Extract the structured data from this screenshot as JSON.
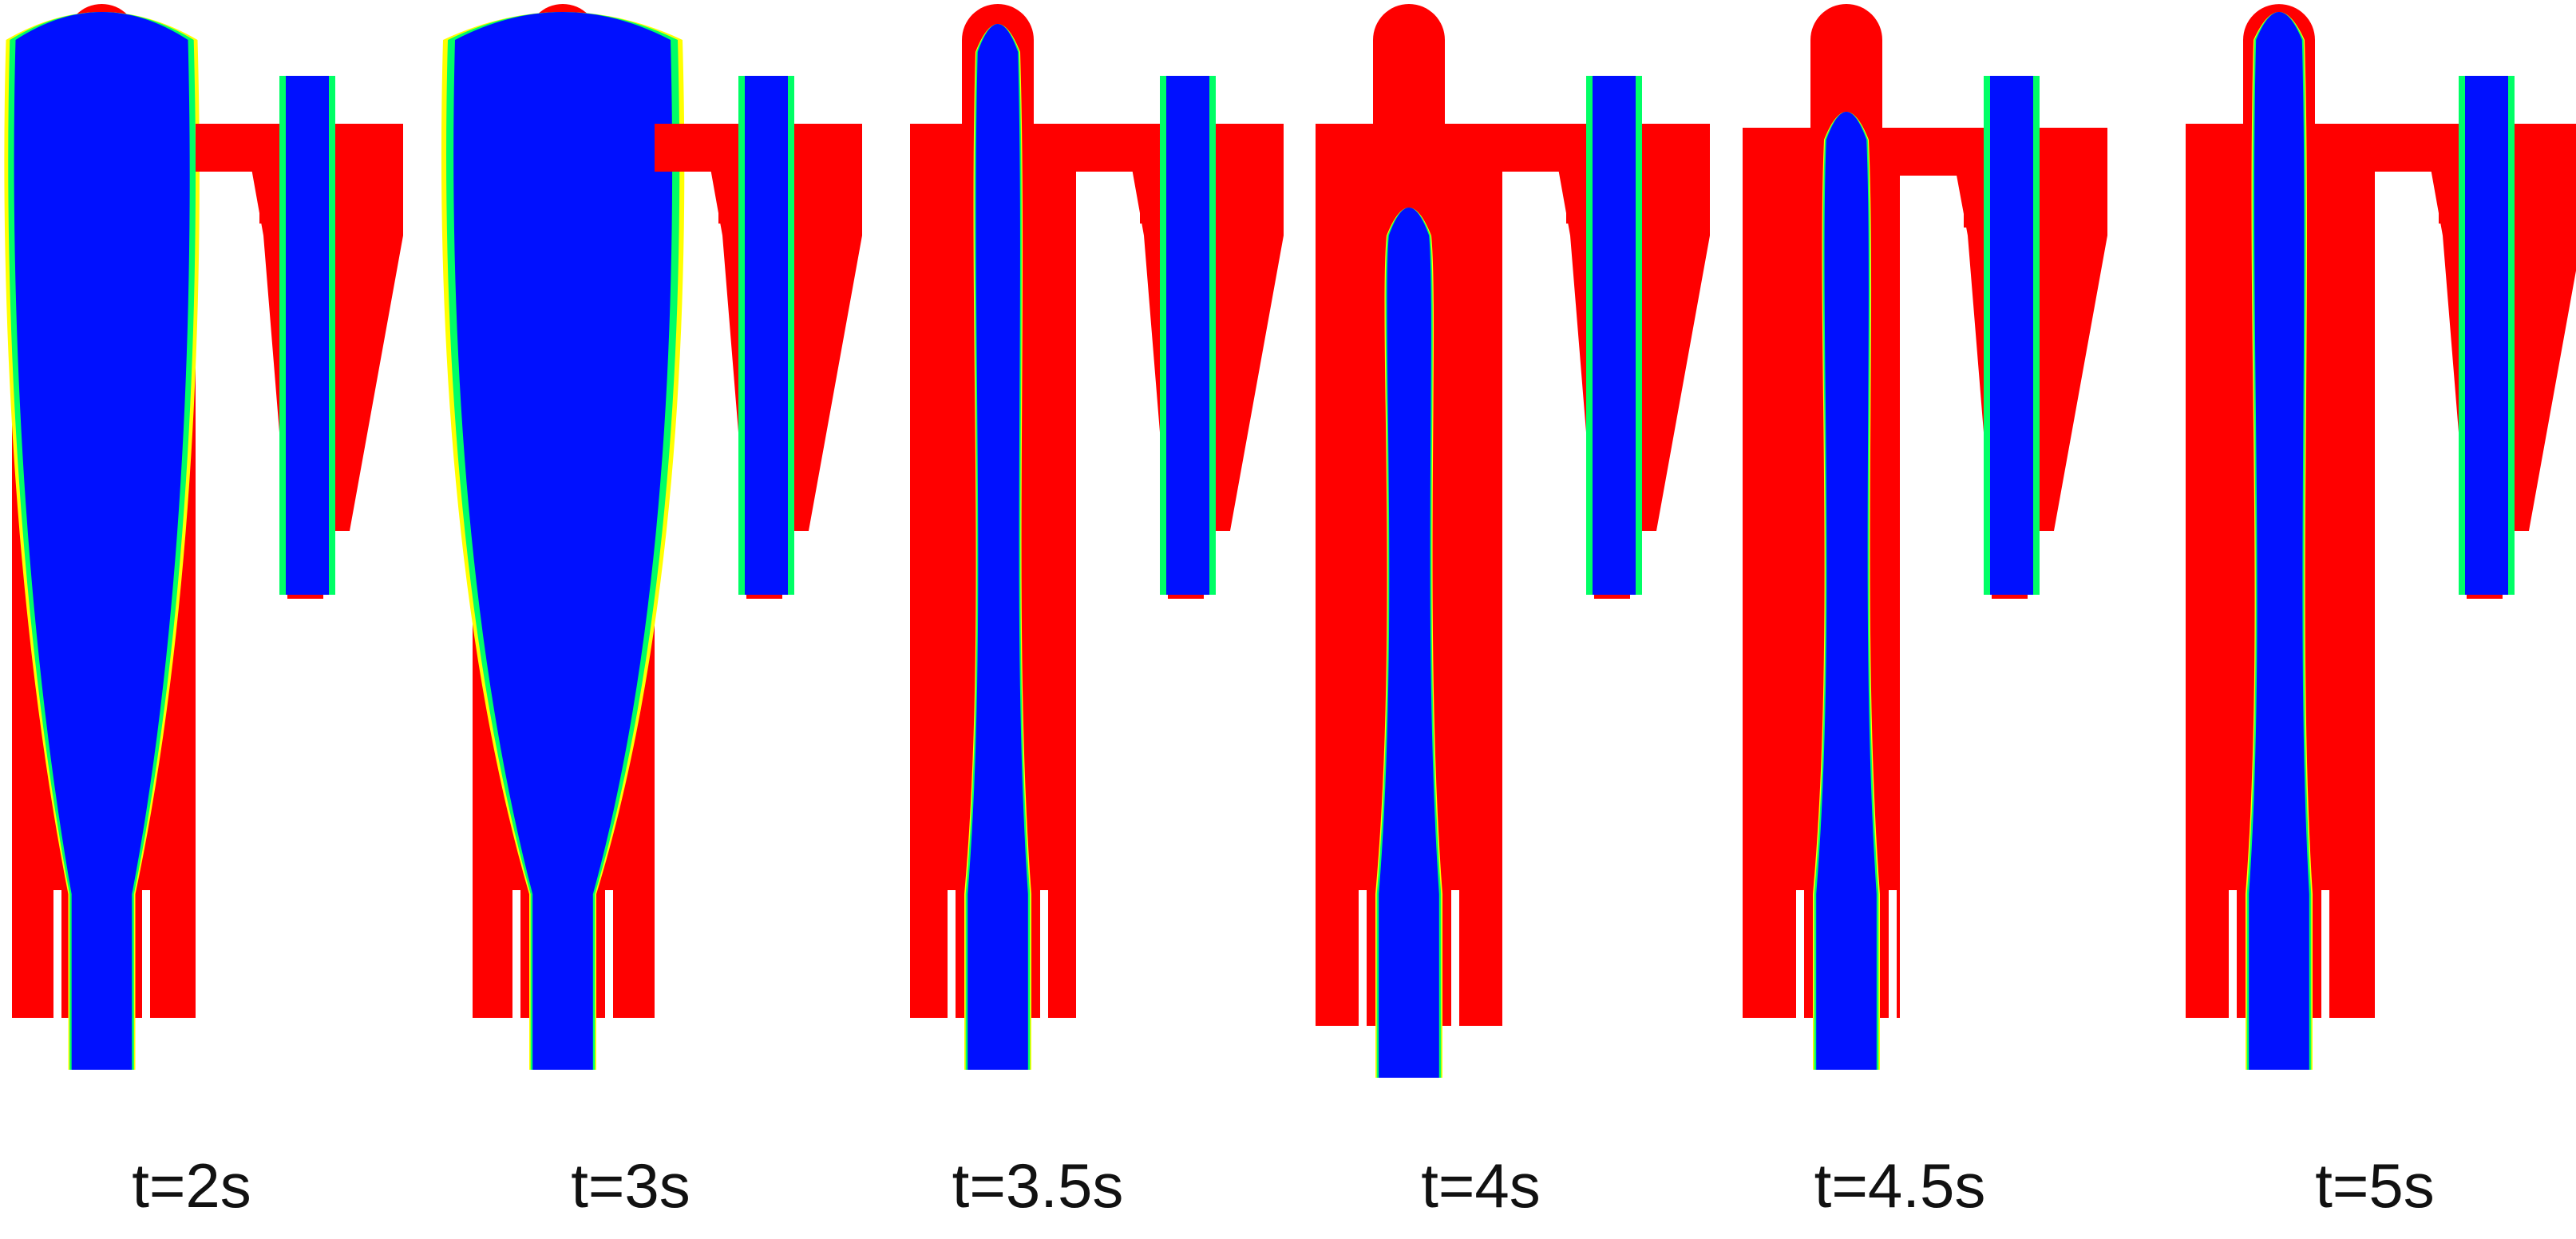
{
  "figure": {
    "phase_colors": {
      "liquid": "#ff0000",
      "gas": "#0010ff",
      "interface_yellow": "#ffff00",
      "interface_green": "#00ff66",
      "background": "#ffffff"
    },
    "frames": [
      {
        "label": "t=2s",
        "state": "early"
      },
      {
        "label": "t=3s",
        "state": "early"
      },
      {
        "label": "t=3.5s",
        "state": "core"
      },
      {
        "label": "t=4s",
        "state": "core-low"
      },
      {
        "label": "t=4.5s",
        "state": "core"
      },
      {
        "label": "t=5s",
        "state": "core-full"
      }
    ]
  }
}
